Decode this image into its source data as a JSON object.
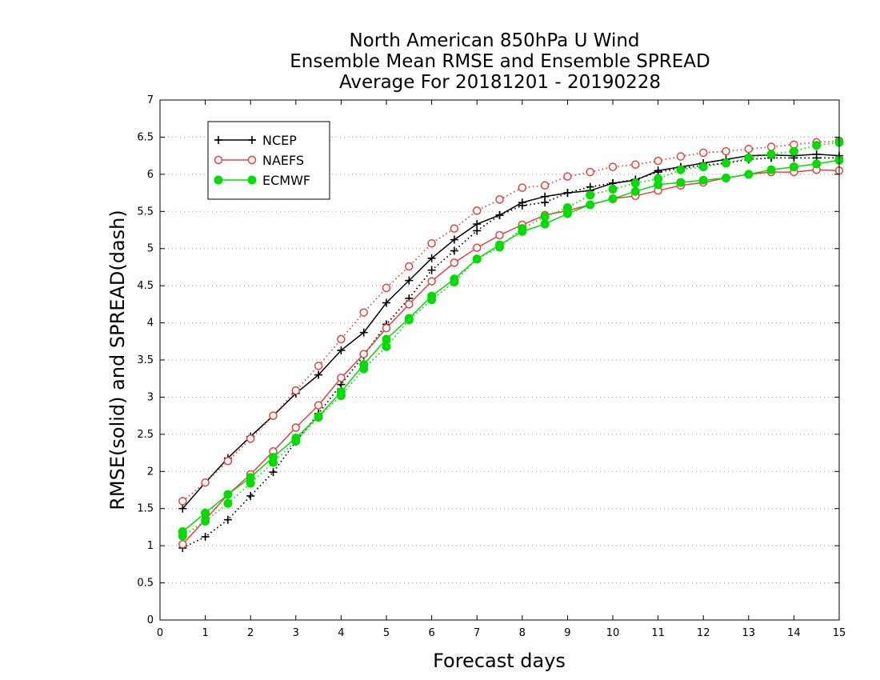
{
  "chart_data": {
    "type": "line",
    "title": "North American 850hPa U Wind",
    "subtitle": "Ensemble Mean RMSE and Ensemble SPREAD",
    "period": "Average For 20181201 - 20190228",
    "xlabel": "Forecast days",
    "ylabel": "RMSE(solid) and SPREAD(dash)",
    "xlim": [
      0,
      15
    ],
    "ylim": [
      0,
      7
    ],
    "xticks": [
      "0",
      "1",
      "2",
      "3",
      "4",
      "5",
      "6",
      "7",
      "8",
      "9",
      "10",
      "11",
      "12",
      "13",
      "14",
      "15"
    ],
    "yticks": [
      "0",
      "0.5",
      "1",
      "1.5",
      "2",
      "2.5",
      "3",
      "3.5",
      "4",
      "4.5",
      "5",
      "5.5",
      "6",
      "6.5",
      "7"
    ],
    "grid": "horizontal dotted",
    "legend_position": "top-left",
    "x": [
      0.5,
      1,
      1.5,
      2,
      2.5,
      3,
      3.5,
      4,
      4.5,
      5,
      5.5,
      6,
      6.5,
      7,
      7.5,
      8,
      8.5,
      9,
      9.5,
      10,
      10.5,
      11,
      11.5,
      12,
      12.5,
      13,
      13.5,
      14,
      14.5,
      15
    ],
    "series": [
      {
        "name": "NCEP",
        "color": "#000000",
        "marker": "plus",
        "rmse": [
          1.5,
          1.85,
          2.18,
          2.47,
          2.75,
          3.05,
          3.3,
          3.63,
          3.87,
          4.27,
          4.57,
          4.87,
          5.12,
          5.33,
          5.45,
          5.62,
          5.7,
          5.75,
          5.78,
          5.88,
          5.92,
          6.05,
          6.1,
          6.15,
          6.2,
          6.25,
          6.26,
          6.25,
          6.27,
          6.25
        ],
        "spread": [
          0.97,
          1.12,
          1.35,
          1.67,
          1.99,
          2.4,
          2.78,
          3.17,
          3.56,
          3.98,
          4.33,
          4.71,
          4.97,
          5.24,
          5.45,
          5.58,
          5.62,
          5.75,
          5.83,
          5.88,
          5.93,
          6.03,
          6.08,
          6.12,
          6.15,
          6.2,
          6.22,
          6.22,
          6.22,
          6.22
        ]
      },
      {
        "name": "NAEFS",
        "color": "#e84040",
        "marker": "circle-open",
        "rmse": [
          1.02,
          1.35,
          1.69,
          1.96,
          2.27,
          2.59,
          2.89,
          3.26,
          3.58,
          3.93,
          4.25,
          4.56,
          4.81,
          5.01,
          5.18,
          5.32,
          5.45,
          5.51,
          5.59,
          5.67,
          5.71,
          5.78,
          5.85,
          5.89,
          5.95,
          6.0,
          6.03,
          6.03,
          6.06,
          6.05
        ],
        "spread": [
          1.6,
          1.85,
          2.14,
          2.44,
          2.75,
          3.09,
          3.42,
          3.78,
          4.14,
          4.47,
          4.76,
          5.07,
          5.27,
          5.51,
          5.66,
          5.82,
          5.85,
          5.97,
          6.03,
          6.1,
          6.13,
          6.18,
          6.24,
          6.29,
          6.31,
          6.34,
          6.37,
          6.4,
          6.43,
          6.45
        ]
      },
      {
        "name": "ECMWF",
        "color": "#00dd00",
        "marker": "circle-filled",
        "rmse": [
          1.19,
          1.44,
          1.69,
          1.92,
          2.19,
          2.45,
          2.74,
          3.07,
          3.44,
          3.78,
          4.06,
          4.36,
          4.59,
          4.86,
          5.05,
          5.23,
          5.33,
          5.47,
          5.59,
          5.67,
          5.77,
          5.86,
          5.89,
          5.92,
          5.95,
          6.0,
          6.06,
          6.1,
          6.14,
          6.19
        ],
        "spread": [
          1.13,
          1.33,
          1.57,
          1.84,
          2.12,
          2.41,
          2.73,
          3.02,
          3.38,
          3.68,
          4.04,
          4.31,
          4.55,
          4.86,
          5.02,
          5.27,
          5.43,
          5.55,
          5.72,
          5.8,
          5.88,
          5.94,
          6.06,
          6.1,
          6.15,
          6.22,
          6.27,
          6.31,
          6.39,
          6.43
        ]
      }
    ]
  }
}
